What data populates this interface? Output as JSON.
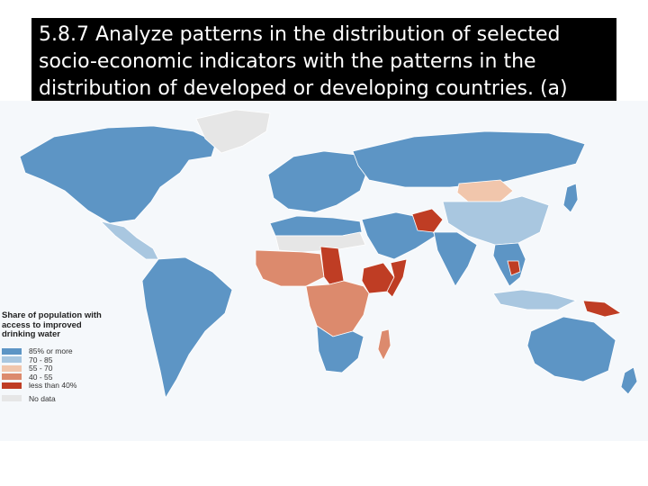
{
  "title": {
    "lines": [
      "5.8.7 Analyze patterns in the distribution of selected",
      "socio-economic indicators with the patterns in the",
      "distribution of developed or developing countries. (a)"
    ]
  },
  "legend": {
    "title_lines": [
      "Share of population with",
      "access to improved",
      "drinking water"
    ],
    "items": [
      {
        "label": "85% or more",
        "color": "#5d95c5"
      },
      {
        "label": "70 - 85",
        "color": "#a9c7e0"
      },
      {
        "label": "55 - 70",
        "color": "#f1c6ac"
      },
      {
        "label": "40 - 55",
        "color": "#dc8a6d"
      },
      {
        "label": "less than 40%",
        "color": "#bf3d24"
      }
    ],
    "no_data": {
      "label": "No data",
      "color": "#e6e6e6"
    }
  },
  "map": {
    "ocean_color": "#f5f8fb",
    "regions": [
      {
        "name": "north-america",
        "class": "85% or more"
      },
      {
        "name": "greenland",
        "class": "No data"
      },
      {
        "name": "central-america",
        "class": "70 - 85"
      },
      {
        "name": "south-america",
        "class": "85% or more"
      },
      {
        "name": "europe",
        "class": "85% or more"
      },
      {
        "name": "russia",
        "class": "85% or more"
      },
      {
        "name": "north-africa",
        "class": "85% or more"
      },
      {
        "name": "sahara",
        "class": "No data"
      },
      {
        "name": "west-africa",
        "class": "40 - 55"
      },
      {
        "name": "chad",
        "class": "less than 40%"
      },
      {
        "name": "ethiopia",
        "class": "less than 40%"
      },
      {
        "name": "somalia",
        "class": "less than 40%"
      },
      {
        "name": "central-africa",
        "class": "40 - 55"
      },
      {
        "name": "southern-africa",
        "class": "85% or more"
      },
      {
        "name": "madagascar",
        "class": "40 - 55"
      },
      {
        "name": "middle-east",
        "class": "85% or more"
      },
      {
        "name": "afghanistan",
        "class": "less than 40%"
      },
      {
        "name": "mongolia",
        "class": "55 - 70"
      },
      {
        "name": "china",
        "class": "70 - 85"
      },
      {
        "name": "india",
        "class": "85% or more"
      },
      {
        "name": "southeast-asia",
        "class": "85% or more"
      },
      {
        "name": "cambodia",
        "class": "less than 40%"
      },
      {
        "name": "indonesia",
        "class": "70 - 85"
      },
      {
        "name": "papua-new-guinea",
        "class": "less than 40%"
      },
      {
        "name": "australia",
        "class": "85% or more"
      },
      {
        "name": "new-zealand",
        "class": "85% or more"
      },
      {
        "name": "japan",
        "class": "85% or more"
      }
    ]
  }
}
